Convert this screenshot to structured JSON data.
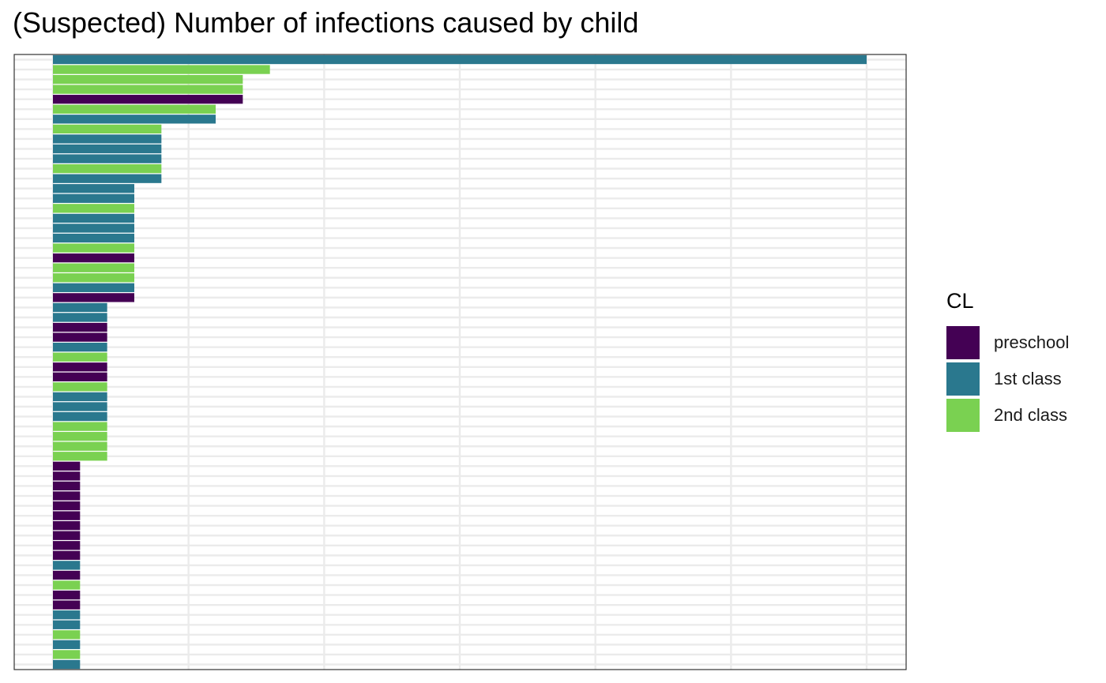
{
  "chart_data": {
    "type": "bar",
    "orientation": "horizontal",
    "title": "(Suspected) Number of infections caused by child",
    "xlabel": "",
    "ylabel": "",
    "grid": true,
    "legend_position": "right",
    "xlim": [
      0,
      30
    ],
    "x_gridlines": [
      0,
      5,
      10,
      15,
      20,
      25,
      30
    ],
    "legend": {
      "title": "CL",
      "items": [
        {
          "label": "preschool",
          "color": "#440154"
        },
        {
          "label": "1st class",
          "color": "#2A788E"
        },
        {
          "label": "2nd class",
          "color": "#7AD151"
        }
      ]
    },
    "bars": [
      {
        "value": 30,
        "class": "1st class"
      },
      {
        "value": 8,
        "class": "2nd class"
      },
      {
        "value": 7,
        "class": "2nd class"
      },
      {
        "value": 7,
        "class": "2nd class"
      },
      {
        "value": 7,
        "class": "preschool"
      },
      {
        "value": 6,
        "class": "2nd class"
      },
      {
        "value": 6,
        "class": "1st class"
      },
      {
        "value": 4,
        "class": "2nd class"
      },
      {
        "value": 4,
        "class": "1st class"
      },
      {
        "value": 4,
        "class": "1st class"
      },
      {
        "value": 4,
        "class": "1st class"
      },
      {
        "value": 4,
        "class": "2nd class"
      },
      {
        "value": 4,
        "class": "1st class"
      },
      {
        "value": 3,
        "class": "1st class"
      },
      {
        "value": 3,
        "class": "1st class"
      },
      {
        "value": 3,
        "class": "2nd class"
      },
      {
        "value": 3,
        "class": "1st class"
      },
      {
        "value": 3,
        "class": "1st class"
      },
      {
        "value": 3,
        "class": "1st class"
      },
      {
        "value": 3,
        "class": "2nd class"
      },
      {
        "value": 3,
        "class": "preschool"
      },
      {
        "value": 3,
        "class": "2nd class"
      },
      {
        "value": 3,
        "class": "2nd class"
      },
      {
        "value": 3,
        "class": "1st class"
      },
      {
        "value": 3,
        "class": "preschool"
      },
      {
        "value": 2,
        "class": "1st class"
      },
      {
        "value": 2,
        "class": "1st class"
      },
      {
        "value": 2,
        "class": "preschool"
      },
      {
        "value": 2,
        "class": "preschool"
      },
      {
        "value": 2,
        "class": "1st class"
      },
      {
        "value": 2,
        "class": "2nd class"
      },
      {
        "value": 2,
        "class": "preschool"
      },
      {
        "value": 2,
        "class": "preschool"
      },
      {
        "value": 2,
        "class": "2nd class"
      },
      {
        "value": 2,
        "class": "1st class"
      },
      {
        "value": 2,
        "class": "1st class"
      },
      {
        "value": 2,
        "class": "1st class"
      },
      {
        "value": 2,
        "class": "2nd class"
      },
      {
        "value": 2,
        "class": "2nd class"
      },
      {
        "value": 2,
        "class": "2nd class"
      },
      {
        "value": 2,
        "class": "2nd class"
      },
      {
        "value": 1,
        "class": "preschool"
      },
      {
        "value": 1,
        "class": "preschool"
      },
      {
        "value": 1,
        "class": "preschool"
      },
      {
        "value": 1,
        "class": "preschool"
      },
      {
        "value": 1,
        "class": "preschool"
      },
      {
        "value": 1,
        "class": "preschool"
      },
      {
        "value": 1,
        "class": "preschool"
      },
      {
        "value": 1,
        "class": "preschool"
      },
      {
        "value": 1,
        "class": "preschool"
      },
      {
        "value": 1,
        "class": "preschool"
      },
      {
        "value": 1,
        "class": "1st class"
      },
      {
        "value": 1,
        "class": "preschool"
      },
      {
        "value": 1,
        "class": "2nd class"
      },
      {
        "value": 1,
        "class": "preschool"
      },
      {
        "value": 1,
        "class": "preschool"
      },
      {
        "value": 1,
        "class": "1st class"
      },
      {
        "value": 1,
        "class": "1st class"
      },
      {
        "value": 1,
        "class": "2nd class"
      },
      {
        "value": 1,
        "class": "1st class"
      },
      {
        "value": 1,
        "class": "2nd class"
      },
      {
        "value": 1,
        "class": "1st class"
      }
    ]
  }
}
